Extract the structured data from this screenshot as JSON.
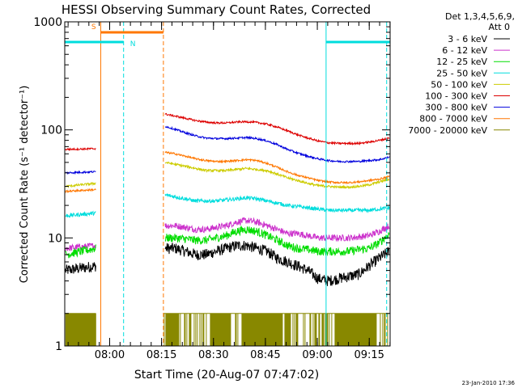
{
  "chart_data": {
    "type": "line",
    "title": "HESSI Observing Summary Count Rates, Corrected",
    "xlabel": "Start Time (20-Aug-07 07:47:02)",
    "ylabel": "Corrected Count Rate (s⁻¹ detector⁻¹)",
    "yscale": "log",
    "ylim": [
      1,
      1000
    ],
    "xlim_minutes": [
      0,
      94
    ],
    "x_ticks": [
      {
        "minute": 12.97,
        "label": "08:00"
      },
      {
        "minute": 27.97,
        "label": "08:15"
      },
      {
        "minute": 42.97,
        "label": "08:30"
      },
      {
        "minute": 57.97,
        "label": "08:45"
      },
      {
        "minute": 72.97,
        "label": "09:00"
      },
      {
        "minute": 87.97,
        "label": "09:15"
      }
    ],
    "y_ticks": [
      {
        "value": 1,
        "label": "1"
      },
      {
        "value": 10,
        "label": "10"
      },
      {
        "value": 100,
        "label": "100"
      },
      {
        "value": 1000,
        "label": "1000"
      }
    ],
    "legend": {
      "placement": "top-right",
      "header": [
        "Det 1,3,4,5,6,9,",
        "Att 0"
      ]
    },
    "data_gap_minutes": [
      9,
      28.5
    ],
    "series": [
      {
        "name": "3 - 6 keV",
        "color": "#000000",
        "segA": [
          5,
          5.5
        ],
        "segB": [
          8,
          8,
          7.5,
          7,
          7,
          7.5,
          8,
          8.5,
          8.5,
          8,
          7.5,
          6.5,
          6,
          5.5,
          5,
          4.2,
          4,
          4.2,
          4.4,
          4.6,
          5.5,
          6.5,
          7.5
        ],
        "noise": 0.12
      },
      {
        "name": "6 - 12 keV",
        "color": "#cc33cc",
        "segA": [
          8,
          8.5
        ],
        "segB": [
          13,
          13,
          12.5,
          12,
          12,
          12.5,
          13,
          14,
          14.5,
          14,
          13,
          12,
          11,
          11,
          10.5,
          10,
          10,
          10,
          10,
          10.2,
          10.5,
          11.5,
          13
        ],
        "noise": 0.07
      },
      {
        "name": "12 - 25 keV",
        "color": "#00dd00",
        "segA": [
          7,
          8
        ],
        "segB": [
          10,
          10,
          9.8,
          9.5,
          9.5,
          10,
          10.5,
          11.5,
          12,
          11.5,
          10.5,
          9.5,
          8.5,
          8,
          7.8,
          7.5,
          7.5,
          7.5,
          7.5,
          7.8,
          8,
          9,
          11
        ],
        "noise": 0.09
      },
      {
        "name": "25 - 50 keV",
        "color": "#00dddd",
        "segA": [
          16,
          17
        ],
        "segB": [
          25,
          24,
          23,
          22,
          22,
          22,
          22.5,
          23,
          23.5,
          23,
          22,
          21,
          20,
          19.5,
          19,
          18.5,
          18,
          18,
          18,
          18,
          18,
          18.5,
          19
        ],
        "noise": 0.04
      },
      {
        "name": "50 - 100 keV",
        "color": "#cccc00",
        "segA": [
          30,
          32
        ],
        "segB": [
          50,
          48,
          46,
          44,
          42,
          42,
          42,
          43,
          44,
          43,
          42,
          39,
          36,
          34,
          32,
          30.5,
          30,
          29.5,
          29.5,
          30,
          31,
          33,
          35
        ],
        "noise": 0.025
      },
      {
        "name": "100 - 300 keV",
        "color": "#dd0000",
        "segA": [
          66,
          67
        ],
        "segB": [
          140,
          134,
          128,
          122,
          118,
          116,
          116,
          118,
          119,
          117,
          113,
          106,
          98,
          90,
          84,
          79,
          76,
          75,
          75,
          75,
          77,
          80,
          84
        ],
        "noise": 0.02
      },
      {
        "name": "300 - 800 keV",
        "color": "#0000dd",
        "segA": [
          40,
          41
        ],
        "segB": [
          108,
          101,
          94,
          88,
          84,
          83,
          83,
          84,
          85,
          83,
          79,
          73,
          66,
          61,
          57,
          54,
          52,
          51,
          51,
          51,
          52,
          53,
          56
        ],
        "noise": 0.02
      },
      {
        "name": "800 - 7000 keV",
        "color": "#ff7700",
        "segA": [
          27,
          28
        ],
        "segB": [
          62,
          60,
          57,
          54,
          52,
          51,
          51,
          52,
          53,
          52,
          49,
          45,
          41,
          38,
          36,
          34,
          33,
          32.5,
          32.5,
          33,
          34,
          35,
          37
        ],
        "noise": 0.02
      },
      {
        "name": "7000 - 20000 keV",
        "color": "#888800",
        "segA": [
          1,
          2
        ],
        "segB": [
          1,
          2
        ],
        "noise": 0
      }
    ],
    "attenuator_bars": [
      {
        "label": "S",
        "color": "#ff7700",
        "start_minute": 10.5,
        "end_minute": 28.5,
        "value": 800
      },
      {
        "label": "N",
        "color": "#00dddd",
        "start_minute": 0,
        "end_minute": 17,
        "value": 650
      },
      {
        "label": "",
        "color": "#00dddd",
        "start_minute": 75.5,
        "end_minute": 94,
        "value": 650
      }
    ],
    "vertical_markers": [
      {
        "minute": 10.4,
        "color": "#ff7700",
        "style": "solid"
      },
      {
        "minute": 17,
        "color": "#00dddd",
        "style": "dashed"
      },
      {
        "minute": 28.5,
        "color": "#ff7700",
        "style": "dashed"
      },
      {
        "minute": 75.5,
        "color": "#00dddd",
        "style": "solid"
      },
      {
        "minute": 93,
        "color": "#00dddd",
        "style": "dashed"
      }
    ],
    "footer_timestamp": "23-Jan-2010 17:36"
  }
}
